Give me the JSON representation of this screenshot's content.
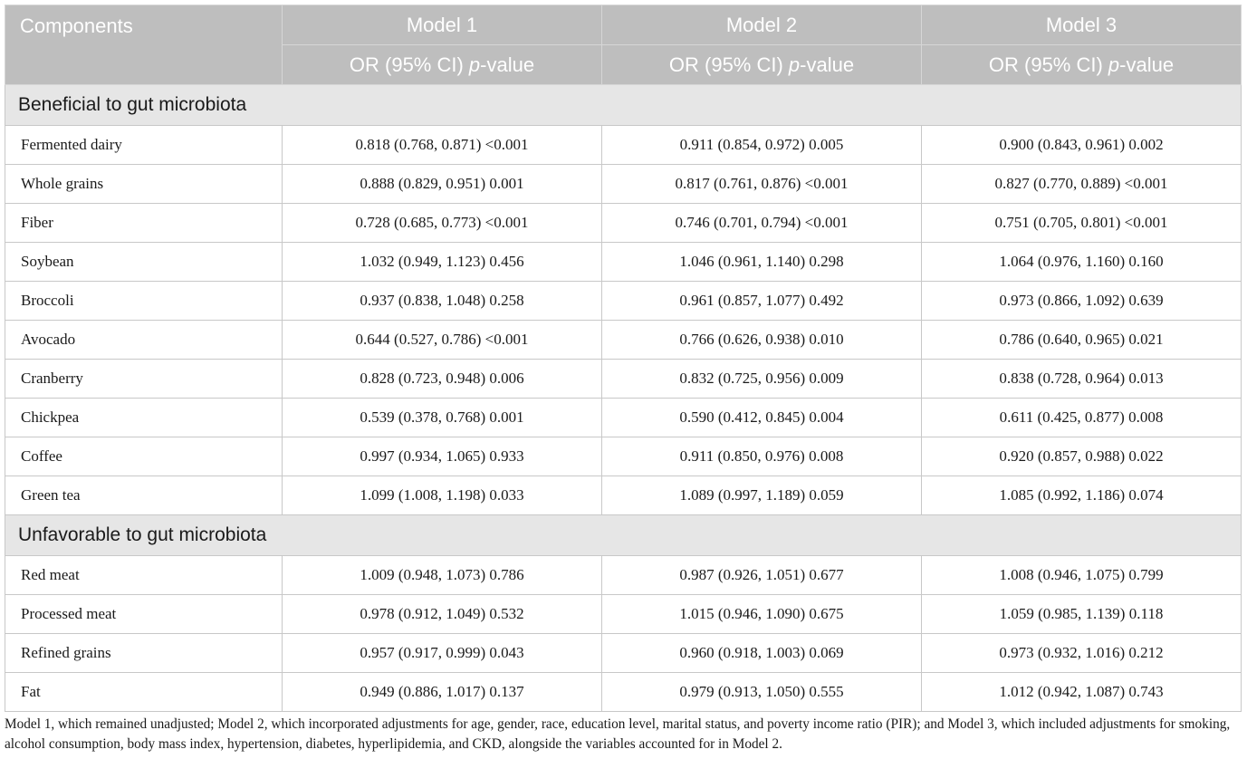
{
  "header": {
    "components_label": "Components",
    "models": [
      "Model 1",
      "Model 2",
      "Model 3"
    ],
    "stat_label_prefix": "OR (95% CI) ",
    "stat_label_p": "p",
    "stat_label_suffix": "-value"
  },
  "sections": [
    {
      "title": "Beneficial to gut microbiota",
      "rows": [
        {
          "name": "Fermented dairy",
          "m1": "0.818 (0.768, 0.871) <0.001",
          "m2": "0.911 (0.854, 0.972) 0.005",
          "m3": "0.900 (0.843, 0.961) 0.002"
        },
        {
          "name": "Whole grains",
          "m1": "0.888 (0.829, 0.951) 0.001",
          "m2": "0.817 (0.761, 0.876) <0.001",
          "m3": "0.827 (0.770, 0.889) <0.001"
        },
        {
          "name": "Fiber",
          "m1": "0.728 (0.685, 0.773) <0.001",
          "m2": "0.746 (0.701, 0.794) <0.001",
          "m3": "0.751 (0.705, 0.801) <0.001"
        },
        {
          "name": "Soybean",
          "m1": "1.032 (0.949, 1.123) 0.456",
          "m2": "1.046 (0.961, 1.140) 0.298",
          "m3": "1.064 (0.976, 1.160) 0.160"
        },
        {
          "name": "Broccoli",
          "m1": "0.937 (0.838, 1.048) 0.258",
          "m2": "0.961 (0.857, 1.077) 0.492",
          "m3": "0.973 (0.866, 1.092) 0.639"
        },
        {
          "name": "Avocado",
          "m1": "0.644 (0.527, 0.786) <0.001",
          "m2": "0.766 (0.626, 0.938) 0.010",
          "m3": "0.786 (0.640, 0.965) 0.021"
        },
        {
          "name": "Cranberry",
          "m1": "0.828 (0.723, 0.948) 0.006",
          "m2": "0.832 (0.725, 0.956) 0.009",
          "m3": "0.838 (0.728, 0.964) 0.013"
        },
        {
          "name": "Chickpea",
          "m1": "0.539 (0.378, 0.768) 0.001",
          "m2": "0.590 (0.412, 0.845) 0.004",
          "m3": "0.611 (0.425, 0.877) 0.008"
        },
        {
          "name": "Coffee",
          "m1": "0.997 (0.934, 1.065) 0.933",
          "m2": "0.911 (0.850, 0.976) 0.008",
          "m3": "0.920 (0.857, 0.988) 0.022"
        },
        {
          "name": "Green tea",
          "m1": "1.099 (1.008, 1.198) 0.033",
          "m2": "1.089 (0.997, 1.189) 0.059",
          "m3": "1.085 (0.992, 1.186) 0.074"
        }
      ]
    },
    {
      "title": "Unfavorable to gut microbiota",
      "rows": [
        {
          "name": "Red meat",
          "m1": "1.009 (0.948, 1.073) 0.786",
          "m2": "0.987 (0.926, 1.051) 0.677",
          "m3": "1.008 (0.946, 1.075) 0.799"
        },
        {
          "name": "Processed meat",
          "m1": "0.978 (0.912, 1.049) 0.532",
          "m2": "1.015 (0.946, 1.090) 0.675",
          "m3": "1.059 (0.985, 1.139) 0.118"
        },
        {
          "name": "Refined grains",
          "m1": "0.957 (0.917, 0.999) 0.043",
          "m2": "0.960 (0.918, 1.003) 0.069",
          "m3": "0.973 (0.932, 1.016) 0.212"
        },
        {
          "name": "Fat",
          "m1": "0.949 (0.886, 1.017) 0.137",
          "m2": "0.979 (0.913, 1.050) 0.555",
          "m3": "1.012 (0.942, 1.087) 0.743"
        }
      ]
    }
  ],
  "footnote": "Model 1, which remained unadjusted; Model 2, which incorporated adjustments for age, gender, race, education level, marital status, and poverty income ratio (PIR); and Model 3, which included adjustments for smoking, alcohol consumption, body mass index, hypertension, diabetes, hyperlipidemia, and CKD, alongside the variables accounted for in Model 2."
}
